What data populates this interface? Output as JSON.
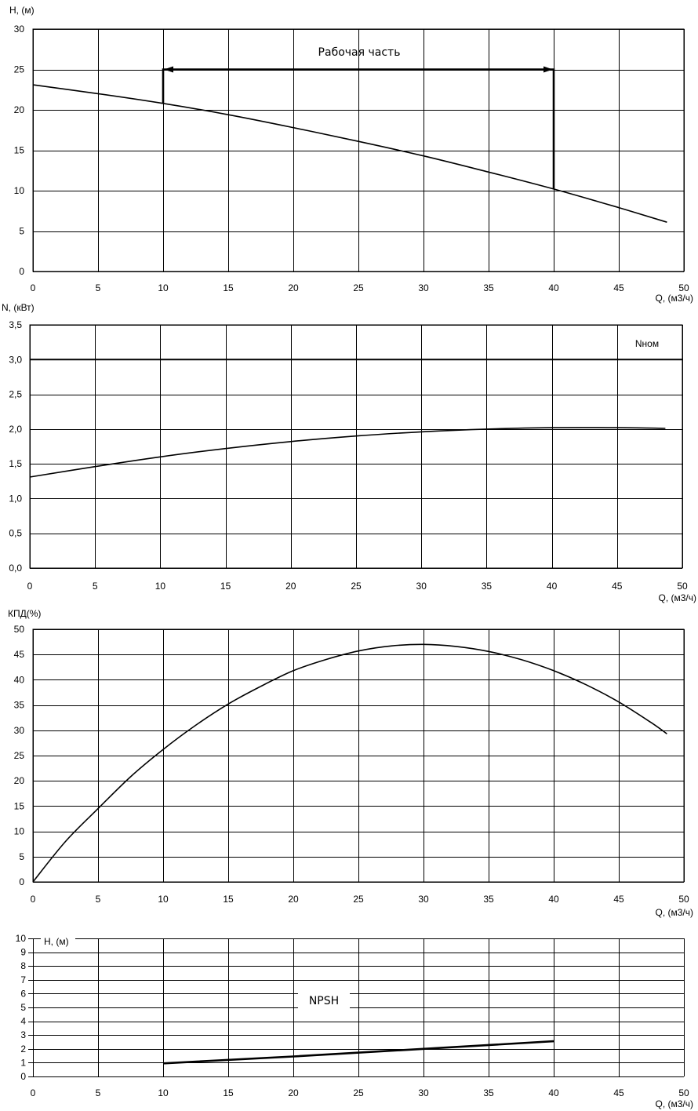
{
  "chart_data": [
    {
      "id": "head",
      "type": "line",
      "ylabel": "H, (м)",
      "xlabel": "Q, (м3/ч)",
      "xlim": [
        0,
        50
      ],
      "ylim": [
        0,
        30
      ],
      "xticks": [
        0,
        5,
        10,
        15,
        20,
        25,
        30,
        35,
        40,
        45,
        50
      ],
      "xtick_labels": [
        "0",
        "5",
        "10",
        "15",
        "20",
        "25",
        "30",
        "35",
        "40",
        "45",
        "50"
      ],
      "yticks": [
        0,
        5,
        10,
        15,
        20,
        25,
        30
      ],
      "ytick_labels": [
        "0",
        "5",
        "10",
        "15",
        "20",
        "25",
        "30"
      ],
      "grid": true,
      "series": [
        {
          "x": [
            0,
            5,
            10,
            15,
            20,
            25,
            30,
            35,
            40,
            45,
            48.7
          ],
          "y": [
            23.1,
            22.0,
            20.8,
            19.4,
            17.8,
            16.1,
            14.3,
            12.3,
            10.2,
            7.9,
            6.1
          ]
        }
      ],
      "annotations": [
        {
          "text": "Рабочая часть",
          "x_range": [
            10,
            40
          ],
          "y": 25
        }
      ]
    },
    {
      "id": "power",
      "type": "line",
      "ylabel": "N, (кВт)",
      "xlabel": "Q, (м3/ч)",
      "xlim": [
        0,
        50
      ],
      "ylim": [
        0,
        3.5
      ],
      "xticks": [
        0,
        5,
        10,
        15,
        20,
        25,
        30,
        35,
        40,
        45,
        50
      ],
      "xtick_labels": [
        "0",
        "5",
        "10",
        "15",
        "20",
        "25",
        "30",
        "35",
        "40",
        "45",
        "50"
      ],
      "yticks": [
        0,
        0.5,
        1,
        1.5,
        2,
        2.5,
        3,
        3.5
      ],
      "ytick_labels": [
        "0,0",
        "0,5",
        "1,0",
        "1,5",
        "2,0",
        "2,5",
        "3,0",
        "3,5"
      ],
      "grid": true,
      "series": [
        {
          "x": [
            0,
            5,
            10,
            15,
            20,
            25,
            30,
            35,
            40,
            45,
            48.7
          ],
          "y": [
            1.31,
            1.46,
            1.6,
            1.72,
            1.82,
            1.9,
            1.96,
            2.0,
            2.02,
            2.02,
            2.01
          ]
        }
      ],
      "hline": {
        "label": "Nном",
        "y": 3.0
      }
    },
    {
      "id": "efficiency",
      "type": "line",
      "ylabel": "КПД(%)",
      "xlabel": "Q, (м3/ч)",
      "xlim": [
        0,
        50
      ],
      "ylim": [
        0,
        50
      ],
      "xticks": [
        0,
        5,
        10,
        15,
        20,
        25,
        30,
        35,
        40,
        45,
        50
      ],
      "xtick_labels": [
        "0",
        "5",
        "10",
        "15",
        "20",
        "25",
        "30",
        "35",
        "40",
        "45",
        "50"
      ],
      "yticks": [
        0,
        5,
        10,
        15,
        20,
        25,
        30,
        35,
        40,
        45,
        50
      ],
      "ytick_labels": [
        "0",
        "5",
        "10",
        "15",
        "20",
        "25",
        "30",
        "35",
        "40",
        "45",
        "50"
      ],
      "grid": true,
      "series": [
        {
          "x": [
            0,
            2.5,
            5,
            7.5,
            10,
            12.5,
            15,
            17.5,
            20,
            22.5,
            25,
            27.5,
            30,
            32.5,
            35,
            37.5,
            40,
            42.5,
            45,
            47.5,
            48.7
          ],
          "y": [
            0,
            8.0,
            14.5,
            20.8,
            26.2,
            31.0,
            35.2,
            38.7,
            41.8,
            44.0,
            45.7,
            46.7,
            47.0,
            46.6,
            45.6,
            44.0,
            41.8,
            39.0,
            35.6,
            31.5,
            29.3
          ]
        }
      ]
    },
    {
      "id": "npsh",
      "type": "line",
      "ylabel": "H, (м)",
      "xlabel": "Q, (м3/ч)",
      "xlim": [
        0,
        50
      ],
      "ylim": [
        0,
        10
      ],
      "xticks": [
        0,
        5,
        10,
        15,
        20,
        25,
        30,
        35,
        40,
        45,
        50
      ],
      "xtick_labels": [
        "0",
        "5",
        "10",
        "15",
        "20",
        "25",
        "30",
        "35",
        "40",
        "45",
        "50"
      ],
      "yticks": [
        0,
        1,
        2,
        3,
        4,
        5,
        6,
        7,
        8,
        9,
        10
      ],
      "ytick_labels": [
        "0",
        "1",
        "2",
        "3",
        "4",
        "5",
        "6",
        "7",
        "8",
        "9",
        "10"
      ],
      "grid": true,
      "series": [
        {
          "name": "NPSH",
          "x": [
            10,
            20,
            30,
            40
          ],
          "y": [
            0.95,
            1.45,
            2.0,
            2.55
          ]
        }
      ]
    }
  ]
}
